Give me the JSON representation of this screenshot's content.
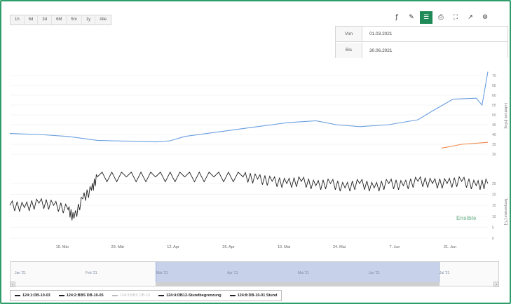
{
  "range_buttons": [
    "1h",
    "6d",
    "3d",
    "6M",
    "5m",
    "1y",
    "Alle"
  ],
  "toolbar": [
    {
      "name": "line-tool-icon",
      "glyph": "ƒ",
      "active": false
    },
    {
      "name": "draw-tool-icon",
      "glyph": "✎",
      "active": false
    },
    {
      "name": "table-icon",
      "glyph": "☰",
      "active": true
    },
    {
      "name": "print-icon",
      "glyph": "⎙",
      "active": false
    },
    {
      "name": "fullscreen-icon",
      "glyph": "⛶",
      "active": false
    },
    {
      "name": "share-icon",
      "glyph": "↗",
      "active": false
    },
    {
      "name": "settings-icon",
      "glyph": "⚙",
      "active": false
    }
  ],
  "date_range": {
    "from_label": "Von",
    "from_value": "01.03.2021",
    "to_label": "Bis",
    "to_value": "30.06.2021"
  },
  "colors": {
    "level": "#6a9ee0",
    "level2": "#f08a4b",
    "temperature": "#222222",
    "accent": "#1f8a57"
  },
  "chart_data": {
    "type": "line",
    "x_ticks": [
      "15. Mär",
      "29. Mär",
      "12. Apr",
      "26. Apr",
      "10. Mai",
      "24. Mai",
      "7. Jun",
      "21. Jun"
    ],
    "y_axis_upper": {
      "label": "Luftdruck [hPa]",
      "ticks": [
        70,
        65,
        60,
        55,
        50,
        45,
        40,
        35,
        30
      ]
    },
    "y_axis_lower": {
      "label": "Temperatur [°C]",
      "ticks": [
        25,
        20,
        15,
        10,
        5,
        0
      ]
    },
    "series": [
      {
        "name": "124:1:DB-10-03",
        "axis": "upper",
        "points": [
          [
            0,
            40.5
          ],
          [
            10,
            40
          ],
          [
            20,
            39
          ],
          [
            30,
            37
          ],
          [
            35,
            36.8
          ],
          [
            45,
            36.5
          ],
          [
            50,
            36.2
          ],
          [
            55,
            36.8
          ],
          [
            60,
            39
          ],
          [
            70,
            41
          ],
          [
            80,
            43
          ],
          [
            90,
            45
          ],
          [
            95,
            46
          ],
          [
            105,
            47
          ],
          [
            112,
            45
          ],
          [
            120,
            44
          ],
          [
            130,
            45
          ],
          [
            140,
            47.5
          ],
          [
            145,
            52
          ],
          [
            152,
            58
          ],
          [
            160,
            58.5
          ],
          [
            162,
            55
          ],
          [
            164,
            72
          ]
        ]
      },
      {
        "name": "124:4:DB12-Stundbegrenzung",
        "axis": "upper",
        "points": [
          [
            148,
            33
          ],
          [
            155,
            35
          ],
          [
            164,
            36
          ]
        ]
      },
      {
        "name": "124:2:BBS DB-10-05",
        "axis": "lower",
        "points": [
          [
            0,
            15
          ],
          [
            5,
            14
          ],
          [
            10,
            16
          ],
          [
            15,
            15
          ],
          [
            20,
            13
          ],
          [
            22,
            9
          ],
          [
            25,
            18
          ],
          [
            28,
            22
          ],
          [
            30,
            28
          ],
          [
            40,
            28
          ],
          [
            50,
            28
          ],
          [
            60,
            28
          ],
          [
            70,
            28
          ],
          [
            80,
            28
          ],
          [
            85,
            27
          ],
          [
            90,
            26
          ],
          [
            95,
            25
          ],
          [
            100,
            26
          ],
          [
            105,
            24
          ],
          [
            110,
            25
          ],
          [
            115,
            23
          ],
          [
            120,
            25
          ],
          [
            125,
            23
          ],
          [
            130,
            25
          ],
          [
            135,
            24
          ],
          [
            140,
            26
          ],
          [
            145,
            25
          ],
          [
            150,
            25
          ],
          [
            155,
            26
          ],
          [
            160,
            24
          ],
          [
            164,
            25
          ]
        ]
      }
    ]
  },
  "navigator": {
    "labels": [
      "Jan '21",
      "Feb '21",
      "Mär '21",
      "Apr '21",
      "Mai '21",
      "Jun '21",
      "Jul '21"
    ]
  },
  "legend": [
    {
      "label": "124:1:DB-10-03",
      "dim": false,
      "color": "#222222"
    },
    {
      "label": "124:2:BBS DB-10-05",
      "dim": false,
      "color": "#222222"
    },
    {
      "label": "124:3:BBS DB-10",
      "dim": true,
      "color": "#bdbdbd"
    },
    {
      "label": "124:4:DB12-Stundbegrenzung",
      "dim": false,
      "color": "#222222"
    },
    {
      "label": "124:8:DB-10-01 Stund",
      "dim": false,
      "color": "#222222"
    }
  ],
  "watermark": "Ensible"
}
